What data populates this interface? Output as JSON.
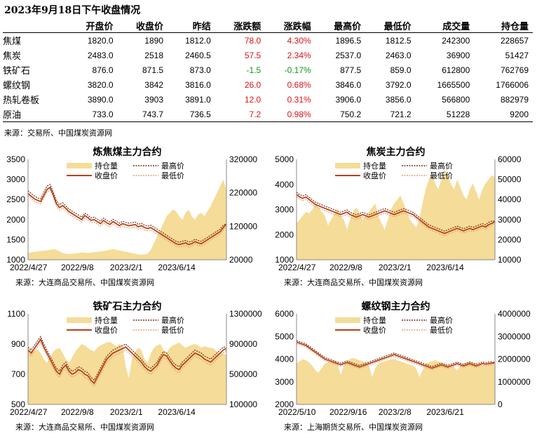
{
  "title": "2023年9月18日下午收盘情况",
  "table": {
    "headers": [
      "开盘价",
      "收盘价",
      "昨结",
      "涨跌额",
      "涨跌幅",
      "最高价",
      "最低价",
      "成交量",
      "持仓量"
    ],
    "rows": [
      {
        "name": "焦煤",
        "open": "1820.0",
        "close": "1890",
        "prev": "1812.0",
        "chg": "78.0",
        "pct": "4.30%",
        "high": "1896.5",
        "low": "1812.5",
        "vol": "242300",
        "oi": "228657",
        "dir": "up"
      },
      {
        "name": "焦炭",
        "open": "2483.0",
        "close": "2518",
        "prev": "2460.5",
        "chg": "57.5",
        "pct": "2.34%",
        "high": "2537.0",
        "low": "2463.0",
        "vol": "36900",
        "oi": "51427",
        "dir": "up"
      },
      {
        "name": "铁矿石",
        "open": "876.0",
        "close": "871.5",
        "prev": "873.0",
        "chg": "-1.5",
        "pct": "-0.17%",
        "high": "877.5",
        "low": "859.0",
        "vol": "612800",
        "oi": "762769",
        "dir": "down"
      },
      {
        "name": "螺纹钢",
        "open": "3820.0",
        "close": "3842",
        "prev": "3816.0",
        "chg": "26.0",
        "pct": "0.68%",
        "high": "3846.0",
        "low": "3792.0",
        "vol": "1665500",
        "oi": "1766006",
        "dir": "up"
      },
      {
        "name": "热轧卷板",
        "open": "3890.0",
        "close": "3903",
        "prev": "3891.0",
        "chg": "12.0",
        "pct": "0.31%",
        "high": "3906.0",
        "low": "3856.0",
        "vol": "566800",
        "oi": "882979",
        "dir": "up"
      },
      {
        "name": "原油",
        "open": "733.0",
        "close": "743.7",
        "prev": "736.5",
        "chg": "7.2",
        "pct": "0.98%",
        "high": "750.2",
        "low": "721.2",
        "vol": "51228",
        "oi": "9200",
        "dir": "up"
      }
    ],
    "source": "来源：交易所、中国煤炭资源网"
  },
  "colors": {
    "up": "#e01010",
    "down": "#119911",
    "area": "#f5dc98",
    "close": "#b5421c",
    "high": "#7a2a10",
    "low": "#e8a070",
    "axis": "#888888"
  },
  "legend": {
    "oi": "持仓量",
    "high": "最高价",
    "close": "收盘价",
    "low": "最低价"
  },
  "chart_data": [
    {
      "type": "line",
      "title": "炼焦煤主力合约",
      "source": "来源：大连商品交易所、中国煤炭资源网",
      "x_ticks": [
        "2022/4/27",
        "2022/9/8",
        "2023/2/1",
        "2023/6/14"
      ],
      "x_tick_pos": [
        0,
        0.258,
        0.505,
        0.747
      ],
      "ylim": [
        1000,
        3500
      ],
      "y_ticks": [
        1000,
        1500,
        2000,
        2500,
        3000,
        3500
      ],
      "y2lim": [
        20000,
        320000
      ],
      "y2_ticks": [
        20000,
        120000,
        220000,
        320000
      ],
      "close": [
        2650,
        2580,
        2520,
        2480,
        2450,
        2600,
        2750,
        2800,
        2620,
        2400,
        2300,
        2350,
        2280,
        2200,
        2150,
        2100,
        2050,
        2000,
        2100,
        2050,
        1980,
        2000,
        1950,
        1900,
        1980,
        1920,
        1880,
        1950,
        1900,
        1850,
        1900,
        1870,
        1850,
        1860,
        1880,
        1820,
        1850,
        1800,
        1780,
        1800,
        1750,
        1700,
        1650,
        1600,
        1550,
        1500,
        1450,
        1400,
        1380,
        1400,
        1420,
        1380,
        1400,
        1450,
        1420,
        1400,
        1450,
        1500,
        1550,
        1600,
        1650,
        1700,
        1800,
        1890
      ],
      "high": [
        2720,
        2650,
        2590,
        2540,
        2520,
        2680,
        2830,
        2880,
        2690,
        2470,
        2370,
        2420,
        2340,
        2260,
        2210,
        2160,
        2110,
        2060,
        2160,
        2110,
        2040,
        2060,
        2010,
        1960,
        2040,
        1980,
        1940,
        2010,
        1960,
        1910,
        1960,
        1930,
        1910,
        1920,
        1940,
        1880,
        1910,
        1860,
        1840,
        1860,
        1810,
        1760,
        1710,
        1660,
        1610,
        1560,
        1510,
        1460,
        1440,
        1460,
        1480,
        1440,
        1460,
        1510,
        1480,
        1460,
        1510,
        1560,
        1610,
        1660,
        1710,
        1760,
        1860,
        1900
      ],
      "low": [
        2590,
        2520,
        2460,
        2420,
        2390,
        2540,
        2690,
        2740,
        2560,
        2340,
        2240,
        2290,
        2220,
        2140,
        2090,
        2040,
        1990,
        1940,
        2040,
        1990,
        1920,
        1940,
        1890,
        1840,
        1920,
        1860,
        1820,
        1890,
        1840,
        1790,
        1840,
        1810,
        1790,
        1800,
        1820,
        1760,
        1790,
        1740,
        1720,
        1740,
        1690,
        1640,
        1590,
        1540,
        1490,
        1440,
        1390,
        1340,
        1320,
        1340,
        1360,
        1320,
        1340,
        1390,
        1360,
        1340,
        1390,
        1440,
        1490,
        1540,
        1590,
        1640,
        1740,
        1810
      ],
      "oi": [
        40000,
        42000,
        44000,
        45000,
        46000,
        47000,
        48000,
        50000,
        52000,
        50000,
        45000,
        40000,
        38000,
        37000,
        38000,
        39000,
        40000,
        42000,
        41000,
        40000,
        42000,
        43000,
        44000,
        45000,
        46000,
        48000,
        50000,
        52000,
        50000,
        48000,
        46000,
        44000,
        42000,
        40000,
        38000,
        36000,
        35000,
        36000,
        38000,
        50000,
        70000,
        90000,
        110000,
        130000,
        150000,
        160000,
        170000,
        165000,
        150000,
        140000,
        160000,
        170000,
        150000,
        140000,
        155000,
        160000,
        150000,
        165000,
        180000,
        200000,
        220000,
        240000,
        260000,
        228657
      ]
    },
    {
      "type": "line",
      "title": "焦炭主力合约",
      "source": "来源：大连商品交易所、中国煤炭资源网",
      "x_ticks": [
        "2022/4/27",
        "2022/9/8",
        "2023/2/1",
        "2023/6/14"
      ],
      "x_tick_pos": [
        0,
        0.258,
        0.505,
        0.747
      ],
      "ylim": [
        1000,
        5000
      ],
      "y_ticks": [
        1000,
        2000,
        3000,
        4000,
        5000
      ],
      "y2lim": [
        10000,
        60000
      ],
      "y2_ticks": [
        10000,
        20000,
        30000,
        40000,
        50000,
        60000
      ],
      "close": [
        3600,
        3500,
        3450,
        3500,
        3400,
        3300,
        3200,
        3150,
        3100,
        3050,
        3000,
        2950,
        2900,
        2850,
        2800,
        2850,
        2900,
        2800,
        2750,
        2700,
        2750,
        2800,
        2750,
        2700,
        2750,
        2800,
        2850,
        2900,
        2950,
        2900,
        2850,
        2800,
        2850,
        2900,
        2950,
        2900,
        2850,
        2800,
        2700,
        2600,
        2500,
        2400,
        2300,
        2250,
        2200,
        2150,
        2100,
        2050,
        2100,
        2150,
        2200,
        2250,
        2200,
        2150,
        2200,
        2250,
        2200,
        2250,
        2300,
        2350,
        2300,
        2400,
        2450,
        2518
      ],
      "high": [
        3690,
        3590,
        3540,
        3590,
        3490,
        3390,
        3290,
        3240,
        3190,
        3140,
        3090,
        3040,
        2990,
        2940,
        2890,
        2940,
        2990,
        2890,
        2840,
        2790,
        2840,
        2890,
        2840,
        2790,
        2840,
        2890,
        2940,
        2990,
        3040,
        2990,
        2940,
        2890,
        2940,
        2990,
        3040,
        2990,
        2940,
        2890,
        2790,
        2690,
        2590,
        2490,
        2390,
        2340,
        2290,
        2240,
        2190,
        2140,
        2190,
        2240,
        2290,
        2340,
        2290,
        2240,
        2290,
        2340,
        2290,
        2340,
        2390,
        2440,
        2390,
        2490,
        2540,
        2537
      ],
      "low": [
        3510,
        3410,
        3360,
        3410,
        3310,
        3210,
        3110,
        3060,
        3010,
        2960,
        2910,
        2860,
        2810,
        2760,
        2710,
        2760,
        2810,
        2710,
        2660,
        2610,
        2660,
        2710,
        2660,
        2610,
        2660,
        2710,
        2760,
        2810,
        2860,
        2810,
        2760,
        2710,
        2760,
        2810,
        2860,
        2810,
        2760,
        2710,
        2610,
        2510,
        2410,
        2310,
        2210,
        2160,
        2110,
        2060,
        2010,
        1960,
        2010,
        2060,
        2110,
        2160,
        2110,
        2060,
        2110,
        2160,
        2110,
        2160,
        2210,
        2260,
        2210,
        2310,
        2360,
        2463
      ],
      "oi": [
        28000,
        30000,
        32000,
        34000,
        33000,
        35000,
        38000,
        36000,
        34000,
        32000,
        27000,
        30000,
        33000,
        35000,
        32000,
        30000,
        25000,
        30000,
        34000,
        36000,
        33000,
        30000,
        32000,
        34000,
        36000,
        38000,
        32000,
        28000,
        25000,
        30000,
        35000,
        38000,
        40000,
        42000,
        38000,
        34000,
        30000,
        28000,
        26000,
        30000,
        38000,
        45000,
        50000,
        52000,
        48000,
        45000,
        50000,
        55000,
        52000,
        48000,
        45000,
        50000,
        46000,
        42000,
        40000,
        45000,
        48000,
        44000,
        40000,
        45000,
        48000,
        50000,
        52000,
        51427
      ]
    },
    {
      "type": "line",
      "title": "铁矿石主力合约",
      "source": "来源：大连商品交易所、中国煤炭资源网",
      "x_ticks": [
        "2022/4/27",
        "2022/9/8",
        "2023/2/1",
        "2023/6/14"
      ],
      "x_tick_pos": [
        0,
        0.258,
        0.505,
        0.747
      ],
      "ylim": [
        500,
        1100
      ],
      "y_ticks": [
        500,
        700,
        900,
        1100
      ],
      "y2lim": [
        100000,
        1300000
      ],
      "y2_ticks": [
        100000,
        500000,
        900000,
        1300000
      ],
      "close": [
        860,
        840,
        870,
        900,
        930,
        880,
        840,
        800,
        760,
        720,
        700,
        740,
        760,
        720,
        700,
        710,
        730,
        720,
        700,
        690,
        660,
        640,
        680,
        720,
        760,
        800,
        820,
        840,
        850,
        860,
        870,
        880,
        860,
        840,
        820,
        800,
        780,
        750,
        730,
        720,
        740,
        760,
        800,
        830,
        820,
        790,
        760,
        740,
        730,
        760,
        780,
        800,
        820,
        840,
        830,
        820,
        800,
        790,
        780,
        800,
        820,
        840,
        860,
        872
      ],
      "high": [
        880,
        860,
        890,
        920,
        950,
        900,
        860,
        820,
        780,
        740,
        720,
        760,
        780,
        740,
        720,
        730,
        750,
        740,
        720,
        710,
        680,
        660,
        700,
        740,
        780,
        820,
        840,
        860,
        870,
        880,
        890,
        900,
        880,
        860,
        840,
        820,
        800,
        770,
        750,
        740,
        760,
        780,
        820,
        850,
        840,
        810,
        780,
        760,
        750,
        780,
        800,
        820,
        840,
        860,
        850,
        840,
        820,
        810,
        800,
        820,
        840,
        860,
        880,
        878
      ],
      "low": [
        840,
        820,
        850,
        880,
        910,
        860,
        820,
        780,
        740,
        700,
        680,
        720,
        740,
        700,
        680,
        690,
        710,
        700,
        680,
        670,
        640,
        620,
        660,
        700,
        740,
        780,
        800,
        820,
        830,
        840,
        850,
        860,
        840,
        820,
        800,
        780,
        760,
        730,
        710,
        700,
        720,
        740,
        780,
        810,
        800,
        770,
        740,
        720,
        710,
        740,
        760,
        780,
        800,
        820,
        810,
        800,
        780,
        770,
        760,
        780,
        800,
        820,
        840,
        859
      ],
      "oi": [
        850000,
        820000,
        800000,
        830000,
        780000,
        700000,
        650000,
        720000,
        800000,
        830000,
        850000,
        780000,
        700000,
        650000,
        720000,
        800000,
        850000,
        900000,
        880000,
        850000,
        820000,
        800000,
        850000,
        880000,
        900000,
        920000,
        930000,
        900000,
        870000,
        900000,
        880000,
        600000,
        450000,
        700000,
        800000,
        850000,
        820000,
        700000,
        650000,
        780000,
        850000,
        880000,
        900000,
        820000,
        780000,
        850000,
        880000,
        900000,
        920000,
        880000,
        850000,
        870000,
        890000,
        900000,
        880000,
        850000,
        870000,
        860000,
        850000,
        840000,
        800000,
        780000,
        770000,
        762769
      ]
    },
    {
      "type": "line",
      "title": "螺纹钢主力合约",
      "source": "来源：上海期货交易所、中国煤炭资源网",
      "x_ticks": [
        "2022/5/10",
        "2022/9/16",
        "2023/2/8",
        "2023/6/21"
      ],
      "x_tick_pos": [
        0,
        0.258,
        0.505,
        0.747
      ],
      "ylim": [
        2000,
        6000
      ],
      "y_ticks": [
        2000,
        3000,
        4000,
        5000,
        6000
      ],
      "y2lim": [
        0,
        4000000
      ],
      "y2_ticks": [
        0,
        1000000,
        2000000,
        3000000,
        4000000
      ],
      "close": [
        4750,
        4700,
        4650,
        4600,
        4500,
        4400,
        4300,
        4200,
        4100,
        4000,
        3950,
        3900,
        3850,
        3800,
        3750,
        3800,
        3850,
        3800,
        3750,
        3700,
        3650,
        3700,
        3750,
        3800,
        3850,
        3900,
        3950,
        4000,
        4050,
        4100,
        4150,
        4200,
        4150,
        4100,
        4050,
        4000,
        3950,
        3900,
        3850,
        3800,
        3750,
        3700,
        3650,
        3600,
        3650,
        3700,
        3750,
        3700,
        3650,
        3700,
        3750,
        3800,
        3750,
        3700,
        3750,
        3800,
        3750,
        3700,
        3750,
        3800,
        3780,
        3800,
        3820,
        3842
      ],
      "high": [
        4820,
        4770,
        4720,
        4670,
        4570,
        4470,
        4370,
        4270,
        4170,
        4070,
        4020,
        3970,
        3920,
        3870,
        3820,
        3870,
        3920,
        3870,
        3820,
        3770,
        3720,
        3770,
        3820,
        3870,
        3920,
        3970,
        4020,
        4070,
        4120,
        4170,
        4220,
        4270,
        4220,
        4170,
        4120,
        4070,
        4020,
        3970,
        3920,
        3870,
        3820,
        3770,
        3720,
        3670,
        3720,
        3770,
        3820,
        3770,
        3720,
        3770,
        3820,
        3870,
        3820,
        3770,
        3820,
        3870,
        3820,
        3770,
        3820,
        3870,
        3850,
        3870,
        3880,
        3846
      ],
      "low": [
        4680,
        4630,
        4580,
        4530,
        4430,
        4330,
        4230,
        4130,
        4030,
        3930,
        3880,
        3830,
        3780,
        3730,
        3680,
        3730,
        3780,
        3730,
        3680,
        3630,
        3580,
        3630,
        3680,
        3730,
        3780,
        3830,
        3880,
        3930,
        3980,
        4030,
        4080,
        4130,
        4080,
        4030,
        3980,
        3930,
        3880,
        3830,
        3780,
        3730,
        3680,
        3630,
        3580,
        3530,
        3580,
        3630,
        3680,
        3630,
        3580,
        3630,
        3680,
        3730,
        3680,
        3630,
        3680,
        3730,
        3680,
        3630,
        3680,
        3730,
        3710,
        3730,
        3760,
        3792
      ],
      "oi": [
        1800000,
        1900000,
        2000000,
        1950000,
        1850000,
        1700000,
        1500000,
        1400000,
        1600000,
        1800000,
        1850000,
        1900000,
        1950000,
        1800000,
        1300000,
        1700000,
        1900000,
        2000000,
        2050000,
        2000000,
        1950000,
        1900000,
        1850000,
        1700000,
        1200000,
        1600000,
        1800000,
        1850000,
        1900000,
        1950000,
        2000000,
        2000000,
        1950000,
        1900000,
        1850000,
        1800000,
        1750000,
        1700000,
        1600000,
        1200000,
        1500000,
        1800000,
        1850000,
        1900000,
        1950000,
        1900000,
        1850000,
        1800000,
        1750000,
        1700000,
        1650000,
        1500000,
        1700000,
        1800000,
        1850000,
        1900000,
        1850000,
        1800000,
        1750000,
        1700000,
        1750000,
        1800000,
        1780000,
        1766006
      ]
    }
  ]
}
